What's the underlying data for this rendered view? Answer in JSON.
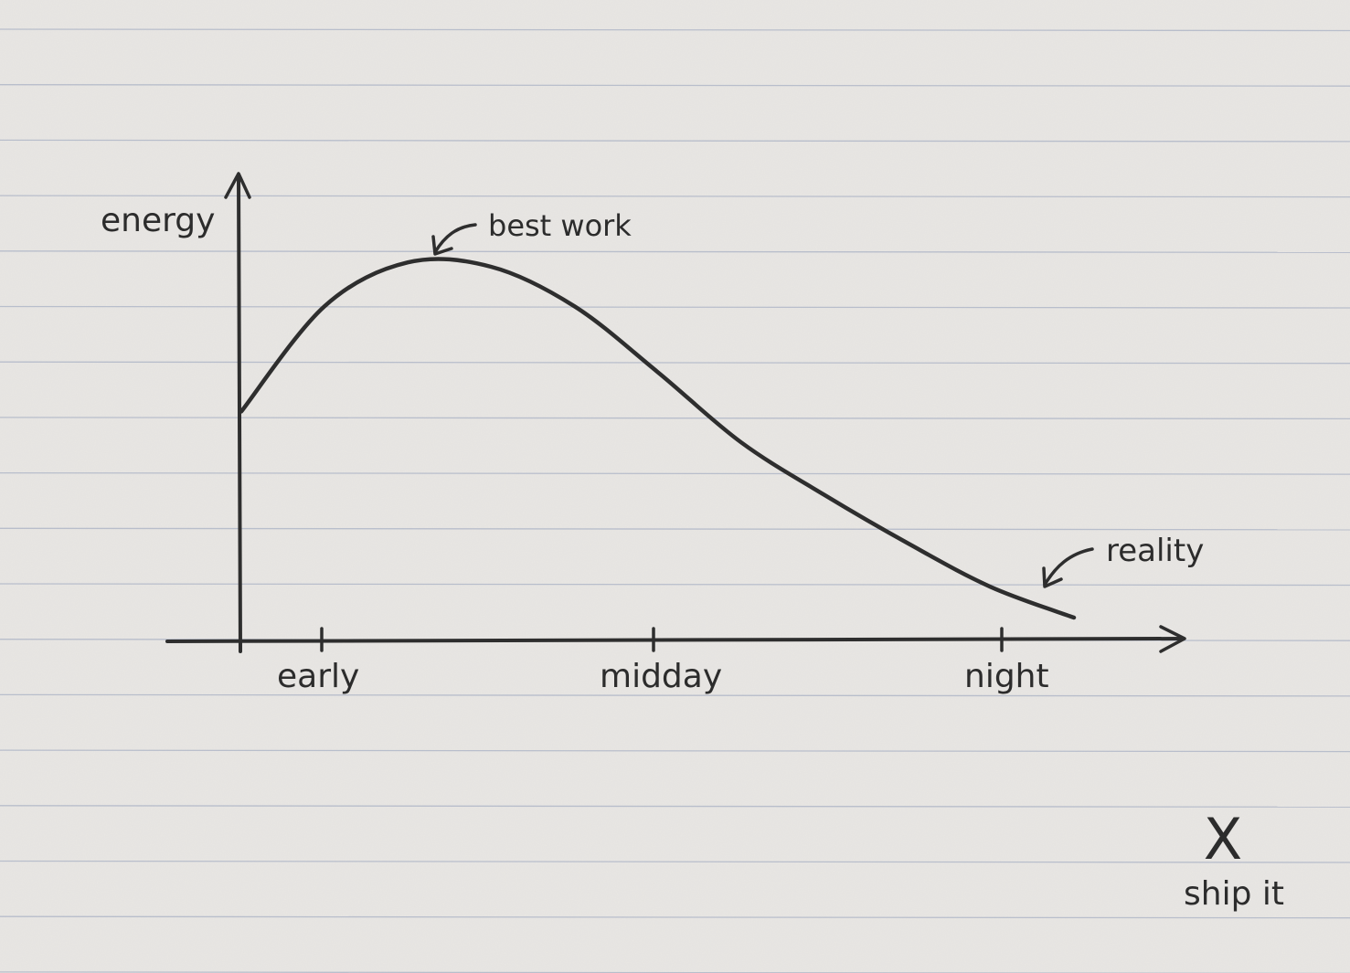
{
  "chart_data": {
    "type": "line",
    "ylabel": "energy",
    "xlabel": "",
    "x_tick_labels": [
      "early",
      "midday",
      "night"
    ],
    "series": [
      {
        "values": [
          {
            "x": 0.0,
            "y": 0.52
          },
          {
            "x": 0.1,
            "y": 0.76
          },
          {
            "x": 0.2,
            "y": 0.86
          },
          {
            "x": 0.3,
            "y": 0.85
          },
          {
            "x": 0.4,
            "y": 0.76
          },
          {
            "x": 0.5,
            "y": 0.61
          },
          {
            "x": 0.6,
            "y": 0.45
          },
          {
            "x": 0.7,
            "y": 0.33
          },
          {
            "x": 0.8,
            "y": 0.22
          },
          {
            "x": 0.9,
            "y": 0.12
          },
          {
            "x": 1.0,
            "y": 0.05
          }
        ]
      }
    ],
    "annotations": [
      {
        "text": "best work",
        "target": "peak"
      },
      {
        "text": "reality",
        "target": "end"
      }
    ],
    "grid": false,
    "paper": "ruled",
    "stroke_color": "#2e2e2e",
    "paper_color": "#e9e7e4",
    "rule_color": "#a9b1c4"
  },
  "footer_mark": {
    "symbol": "X",
    "label": "ship it"
  }
}
